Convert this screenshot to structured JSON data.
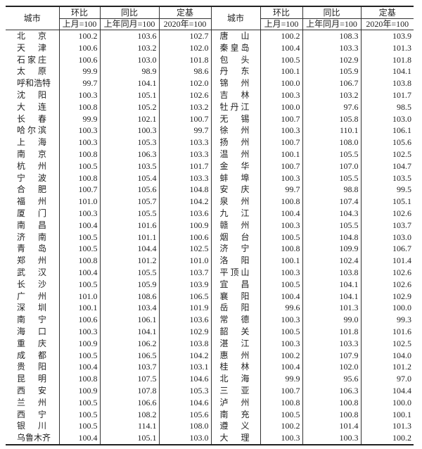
{
  "header": {
    "city": "城市",
    "mom": "环比",
    "yoy": "同比",
    "fixed": "定基",
    "mom_base": "上月=100",
    "yoy_base": "上年同月=100",
    "fixed_base": "2020年=100"
  },
  "left": [
    [
      "北京",
      "100.2",
      "103.6",
      "102.7"
    ],
    [
      "天津",
      "100.6",
      "103.2",
      "102.0"
    ],
    [
      "石家庄",
      "100.6",
      "103.0",
      "101.8"
    ],
    [
      "太原",
      "99.9",
      "98.9",
      "98.6"
    ],
    [
      "呼和浩特",
      "99.7",
      "104.1",
      "102.0"
    ],
    [
      "沈阳",
      "100.3",
      "105.1",
      "102.6"
    ],
    [
      "大连",
      "100.8",
      "105.2",
      "103.2"
    ],
    [
      "长春",
      "99.9",
      "102.1",
      "100.7"
    ],
    [
      "哈尔滨",
      "100.3",
      "100.3",
      "99.7"
    ],
    [
      "上海",
      "100.3",
      "105.3",
      "103.3"
    ],
    [
      "南京",
      "100.8",
      "106.3",
      "103.3"
    ],
    [
      "杭州",
      "100.5",
      "103.5",
      "101.7"
    ],
    [
      "宁波",
      "100.8",
      "105.4",
      "103.3"
    ],
    [
      "合肥",
      "100.7",
      "105.6",
      "104.8"
    ],
    [
      "福州",
      "101.0",
      "105.7",
      "104.2"
    ],
    [
      "厦门",
      "100.3",
      "105.5",
      "103.6"
    ],
    [
      "南昌",
      "100.4",
      "101.6",
      "100.9"
    ],
    [
      "济南",
      "100.5",
      "101.1",
      "100.6"
    ],
    [
      "青岛",
      "100.5",
      "104.4",
      "102.5"
    ],
    [
      "郑州",
      "100.8",
      "101.2",
      "101.0"
    ],
    [
      "武汉",
      "100.4",
      "105.5",
      "103.7"
    ],
    [
      "长沙",
      "100.5",
      "105.9",
      "103.9"
    ],
    [
      "广州",
      "101.0",
      "108.6",
      "106.5"
    ],
    [
      "深圳",
      "100.1",
      "103.4",
      "101.9"
    ],
    [
      "南宁",
      "100.6",
      "106.1",
      "103.6"
    ],
    [
      "海口",
      "100.3",
      "104.1",
      "102.9"
    ],
    [
      "重庆",
      "100.9",
      "106.2",
      "103.8"
    ],
    [
      "成都",
      "100.5",
      "106.5",
      "104.2"
    ],
    [
      "贵阳",
      "100.4",
      "103.7",
      "103.1"
    ],
    [
      "昆明",
      "100.8",
      "107.5",
      "104.6"
    ],
    [
      "西安",
      "100.9",
      "107.8",
      "105.3"
    ],
    [
      "兰州",
      "100.5",
      "106.6",
      "104.6"
    ],
    [
      "西宁",
      "100.5",
      "108.2",
      "105.6"
    ],
    [
      "银川",
      "100.5",
      "114.1",
      "108.0"
    ],
    [
      "乌鲁木齐",
      "100.4",
      "105.1",
      "103.0"
    ]
  ],
  "right": [
    [
      "唐山",
      "100.2",
      "108.3",
      "103.9"
    ],
    [
      "秦皇岛",
      "100.4",
      "103.3",
      "101.3"
    ],
    [
      "包头",
      "100.5",
      "102.9",
      "101.8"
    ],
    [
      "丹东",
      "100.1",
      "105.9",
      "104.1"
    ],
    [
      "锦州",
      "100.0",
      "106.7",
      "103.8"
    ],
    [
      "吉林",
      "100.3",
      "103.2",
      "101.7"
    ],
    [
      "牡丹江",
      "100.0",
      "97.6",
      "98.5"
    ],
    [
      "无锡",
      "100.7",
      "105.8",
      "103.0"
    ],
    [
      "徐州",
      "100.3",
      "110.1",
      "106.1"
    ],
    [
      "扬州",
      "100.7",
      "108.0",
      "105.6"
    ],
    [
      "温州",
      "100.1",
      "105.5",
      "102.5"
    ],
    [
      "金华",
      "100.7",
      "107.0",
      "104.7"
    ],
    [
      "蚌埠",
      "100.3",
      "105.5",
      "103.5"
    ],
    [
      "安庆",
      "99.7",
      "98.8",
      "99.5"
    ],
    [
      "泉州",
      "100.8",
      "107.4",
      "105.1"
    ],
    [
      "九江",
      "100.4",
      "104.3",
      "102.6"
    ],
    [
      "赣州",
      "100.3",
      "105.5",
      "103.7"
    ],
    [
      "烟台",
      "100.5",
      "104.8",
      "103.0"
    ],
    [
      "济宁",
      "100.8",
      "109.9",
      "106.7"
    ],
    [
      "洛阳",
      "100.1",
      "102.4",
      "101.4"
    ],
    [
      "平顶山",
      "100.3",
      "103.8",
      "102.6"
    ],
    [
      "宜昌",
      "100.5",
      "104.1",
      "102.6"
    ],
    [
      "襄阳",
      "100.4",
      "104.1",
      "102.9"
    ],
    [
      "岳阳",
      "99.6",
      "101.3",
      "100.0"
    ],
    [
      "常德",
      "100.3",
      "99.0",
      "99.3"
    ],
    [
      "韶关",
      "100.5",
      "101.8",
      "101.6"
    ],
    [
      "湛江",
      "100.3",
      "103.3",
      "102.5"
    ],
    [
      "惠州",
      "100.2",
      "107.9",
      "104.0"
    ],
    [
      "桂林",
      "100.4",
      "102.0",
      "101.2"
    ],
    [
      "北海",
      "99.9",
      "95.6",
      "97.0"
    ],
    [
      "三亚",
      "100.7",
      "106.3",
      "104.4"
    ],
    [
      "泸州",
      "100.8",
      "100.8",
      "100.0"
    ],
    [
      "南充",
      "100.5",
      "100.8",
      "100.1"
    ],
    [
      "遵义",
      "100.2",
      "101.4",
      "101.3"
    ],
    [
      "大理",
      "100.3",
      "100.3",
      "100.2"
    ]
  ]
}
